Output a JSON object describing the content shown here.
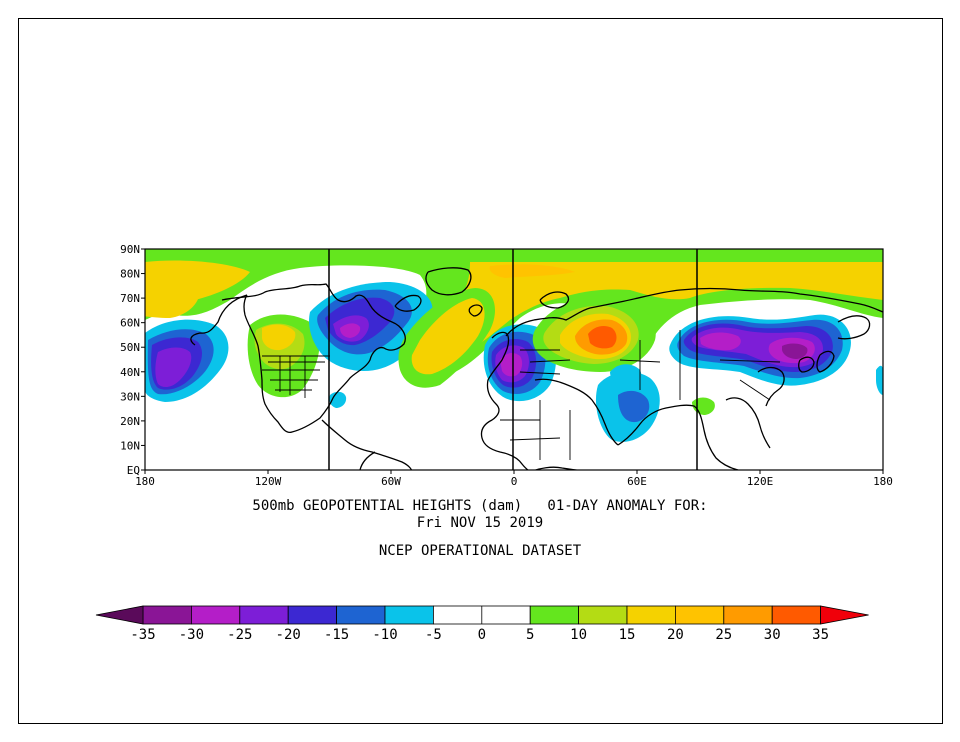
{
  "title": {
    "line1": "500mb GEOPOTENTIAL HEIGHTS (dam)   01-DAY ANOMALY FOR:",
    "line2": "Fri NOV 15 2019",
    "line3": "NCEP OPERATIONAL DATASET"
  },
  "map": {
    "lat_labels": [
      "90N",
      "80N",
      "70N",
      "60N",
      "50N",
      "40N",
      "30N",
      "20N",
      "10N",
      "EQ"
    ],
    "lon_labels": [
      "180",
      "120W",
      "60W",
      "0",
      "60E",
      "120E",
      "180"
    ]
  },
  "colorbar": {
    "labels": [
      "-35",
      "-30",
      "-25",
      "-20",
      "-15",
      "-10",
      "-5",
      "0",
      "5",
      "10",
      "15",
      "20",
      "25",
      "30",
      "35"
    ],
    "colors": {
      "lt_m35": "#5a0a5a",
      "m35_m30": "#8a1596",
      "m30_m25": "#b41ec8",
      "m25_m20": "#7d1ed7",
      "m20_m15": "#3c28d2",
      "m15_m10": "#1e64d2",
      "m10_m5": "#0ac3ea",
      "m5_5": "#ffffff",
      "p5_10": "#64e61e",
      "p10_15": "#b4dc14",
      "p15_20": "#f5d200",
      "p20_25": "#ffc300",
      "p25_30": "#ff9b00",
      "p30_35": "#ff5a00",
      "gt_35": "#f0000a"
    }
  }
}
